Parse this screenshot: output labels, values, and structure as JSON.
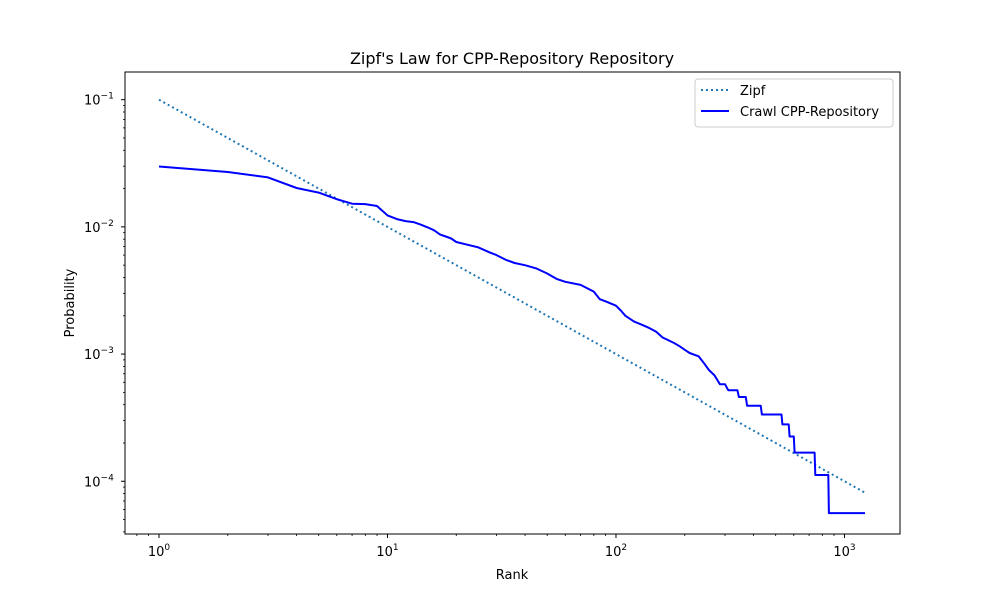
{
  "chart_data": {
    "type": "line",
    "title": "Zipf's Law for CPP-Repository Repository",
    "xlabel": "Rank",
    "ylabel": "Probability",
    "xscale": "log",
    "yscale": "log",
    "xlim": [
      0.71,
      1750
    ],
    "ylim": [
      3.85e-05,
      0.165
    ],
    "xticks": [
      {
        "value": 1,
        "base": "10",
        "exp": "0"
      },
      {
        "value": 10,
        "base": "10",
        "exp": "1"
      },
      {
        "value": 100,
        "base": "10",
        "exp": "2"
      },
      {
        "value": 1000,
        "base": "10",
        "exp": "3"
      }
    ],
    "yticks": [
      {
        "value": 0.1,
        "base": "10",
        "exp": "−1"
      },
      {
        "value": 0.01,
        "base": "10",
        "exp": "−2"
      },
      {
        "value": 0.001,
        "base": "10",
        "exp": "−3"
      },
      {
        "value": 0.0001,
        "base": "10",
        "exp": "−4"
      }
    ],
    "grid": false,
    "legend": "top-right",
    "series": [
      {
        "name": "Zipf",
        "color": "#1f77b4",
        "style": "dotted",
        "x": [
          1,
          1230
        ],
        "y": [
          0.1,
          8.13e-05
        ]
      },
      {
        "name": "Crawl CPP-Repository",
        "color": "#0000ff",
        "style": "solid",
        "points": [
          [
            1,
            0.0298
          ],
          [
            2,
            0.027
          ],
          [
            3,
            0.0245
          ],
          [
            4,
            0.0202
          ],
          [
            5,
            0.0186
          ],
          [
            6,
            0.0165
          ],
          [
            7,
            0.0152
          ],
          [
            8,
            0.0151
          ],
          [
            9,
            0.0146
          ],
          [
            10,
            0.0123
          ],
          [
            11,
            0.0115
          ],
          [
            12,
            0.0111
          ],
          [
            13,
            0.0109
          ],
          [
            14,
            0.0104
          ],
          [
            15,
            0.0099
          ],
          [
            16,
            0.0094
          ],
          [
            17,
            0.0087
          ],
          [
            18,
            0.0084
          ],
          [
            19,
            0.0081
          ],
          [
            20,
            0.0076
          ],
          [
            22,
            0.0073
          ],
          [
            25,
            0.0069
          ],
          [
            28,
            0.0063
          ],
          [
            30,
            0.006
          ],
          [
            33,
            0.0055
          ],
          [
            36,
            0.0052
          ],
          [
            40,
            0.005
          ],
          [
            45,
            0.0047
          ],
          [
            50,
            0.0043
          ],
          [
            55,
            0.0039
          ],
          [
            60,
            0.0037
          ],
          [
            70,
            0.0035
          ],
          [
            80,
            0.0031
          ],
          [
            85,
            0.0027
          ],
          [
            90,
            0.0026
          ],
          [
            100,
            0.0024
          ],
          [
            105,
            0.0022
          ],
          [
            110,
            0.002
          ],
          [
            120,
            0.0018
          ],
          [
            130,
            0.0017
          ],
          [
            140,
            0.0016
          ],
          [
            150,
            0.0015
          ],
          [
            160,
            0.00135
          ],
          [
            170,
            0.00128
          ],
          [
            180,
            0.00122
          ],
          [
            190,
            0.00115
          ],
          [
            200,
            0.00108
          ],
          [
            210,
            0.00102
          ],
          [
            230,
            0.00096
          ],
          [
            245,
            0.00083
          ],
          [
            255,
            0.00075
          ],
          [
            270,
            0.00068
          ],
          [
            285,
            0.00058
          ],
          [
            300,
            0.00058
          ],
          [
            310,
            0.00052
          ],
          [
            340,
            0.00052
          ],
          [
            345,
            0.00046
          ],
          [
            370,
            0.00046
          ],
          [
            375,
            0.000393
          ],
          [
            430,
            0.000393
          ],
          [
            435,
            0.000335
          ],
          [
            530,
            0.000335
          ],
          [
            535,
            0.00028
          ],
          [
            570,
            0.00028
          ],
          [
            575,
            0.000225
          ],
          [
            600,
            0.000225
          ],
          [
            605,
            0.000168
          ],
          [
            740,
            0.000168
          ],
          [
            745,
            0.000112
          ],
          [
            850,
            0.000112
          ],
          [
            855,
            5.62e-05
          ],
          [
            1230,
            5.62e-05
          ]
        ]
      }
    ]
  }
}
